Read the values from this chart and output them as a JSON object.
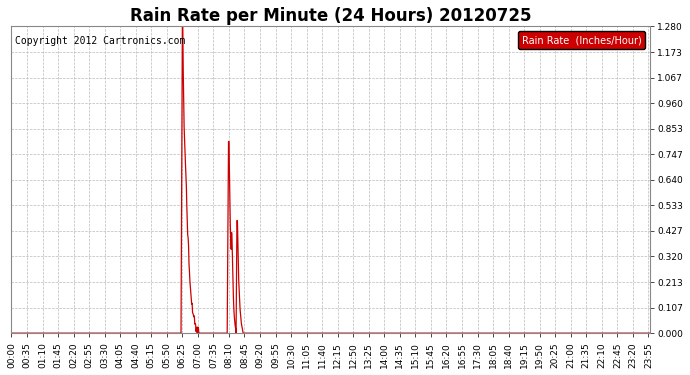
{
  "title": "Rain Rate per Minute (24 Hours) 20120725",
  "copyright_text": "Copyright 2012 Cartronics.com",
  "legend_label": "Rain Rate  (Inches/Hour)",
  "legend_bg": "#cc0000",
  "legend_fg": "#ffffff",
  "line_color": "#cc0000",
  "bg_color": "#ffffff",
  "grid_color": "#bbbbbb",
  "plot_bg": "#ffffff",
  "ylim": [
    0.0,
    1.28
  ],
  "yticks": [
    0.0,
    0.107,
    0.213,
    0.32,
    0.427,
    0.533,
    0.64,
    0.747,
    0.853,
    0.96,
    1.067,
    1.173,
    1.28
  ],
  "title_fontsize": 12,
  "tick_fontsize": 6.5,
  "copyright_fontsize": 7,
  "total_minutes": 1440,
  "tick_interval": 35
}
